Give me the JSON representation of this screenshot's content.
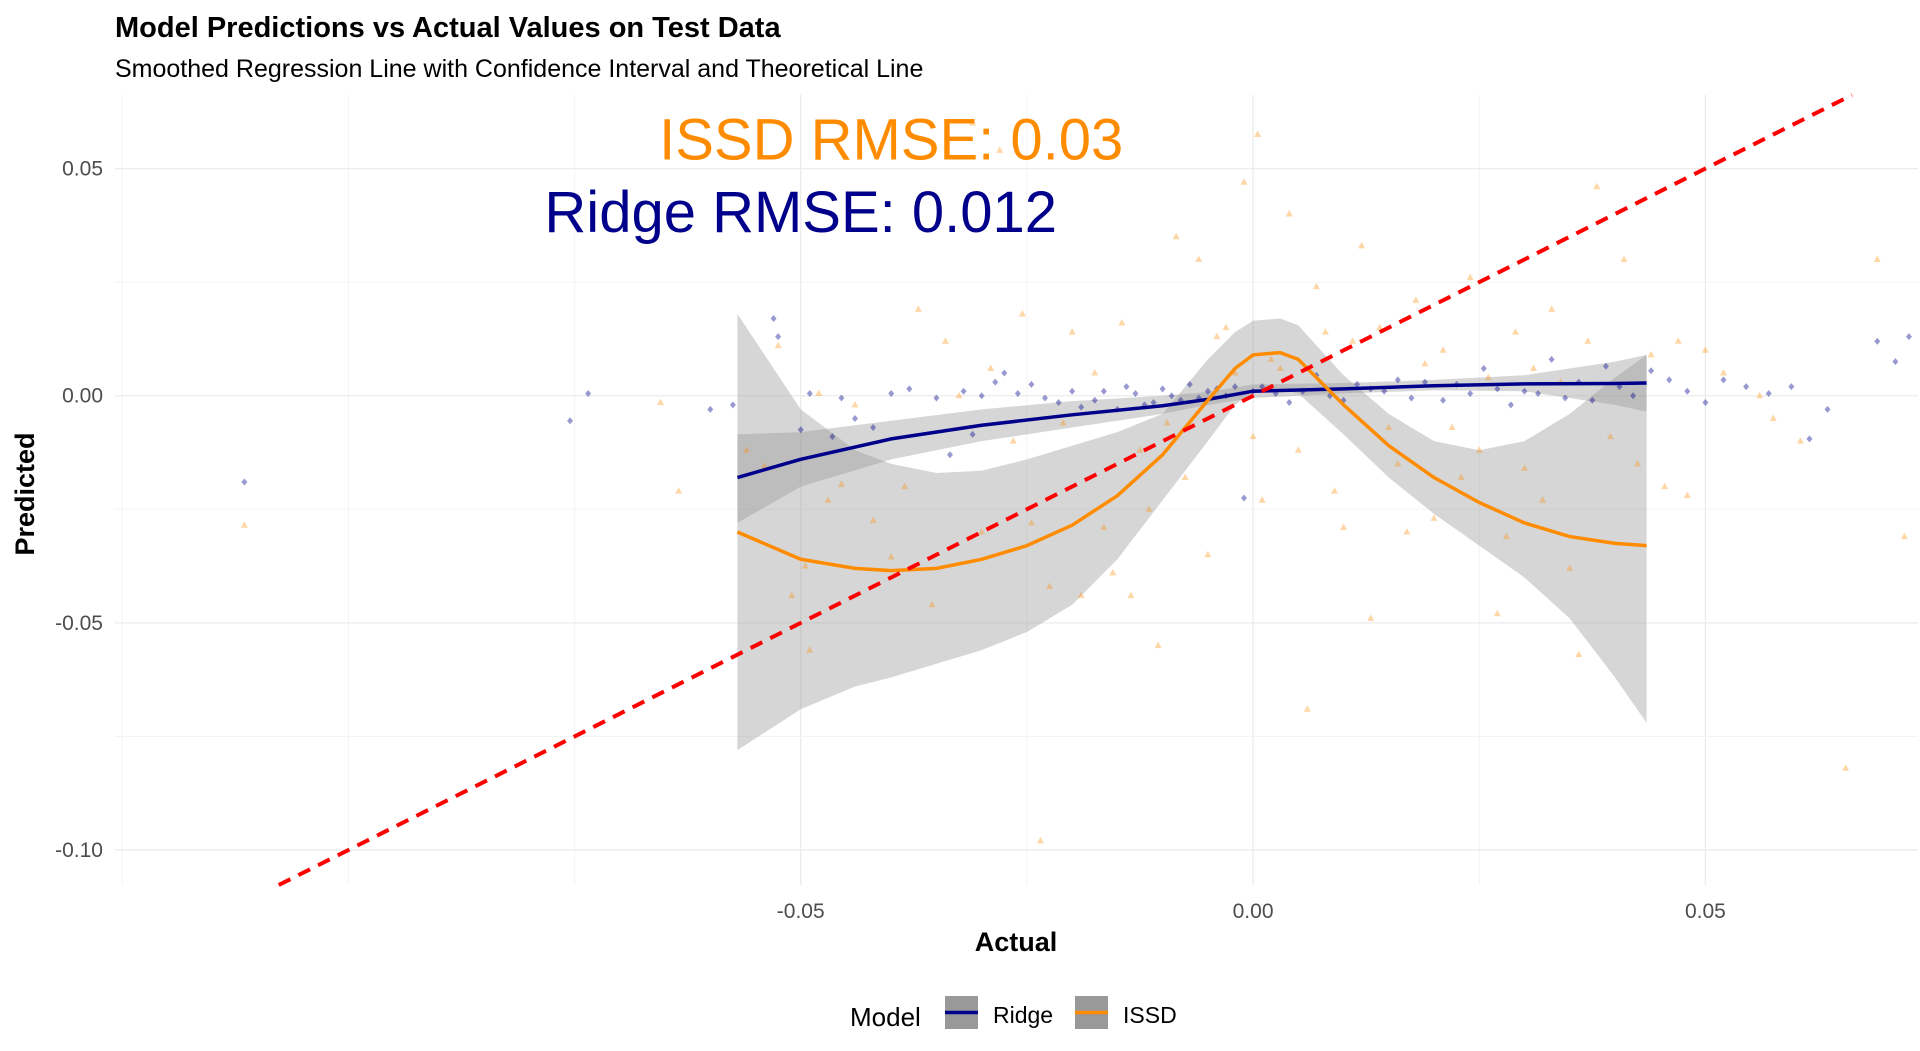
{
  "chart_data": {
    "type": "scatter",
    "title": "Model Predictions vs Actual Values on Test Data",
    "subtitle": "Smoothed Regression Line with Confidence Interval and Theoretical Line",
    "xlabel": "Actual",
    "ylabel": "Predicted",
    "xlim": [
      -0.1258,
      0.0735
    ],
    "ylim": [
      -0.1077,
      0.0662
    ],
    "xticks": [
      -0.05,
      0.0,
      0.05
    ],
    "xtick_labels": [
      "-0.05",
      "0.00",
      "0.05"
    ],
    "yticks": [
      -0.1,
      -0.05,
      0.0,
      0.05
    ],
    "ytick_labels": [
      "-0.10",
      "-0.05",
      "0.00",
      "0.05"
    ],
    "grid": true,
    "legend": {
      "title": "Model",
      "position": "bottom",
      "entries": [
        "Ridge",
        "ISSD"
      ]
    },
    "annotations": [
      {
        "text": "ISSD RMSE: 0.03",
        "x": -0.04,
        "y": 0.052,
        "color": "#ff8c00"
      },
      {
        "text": "Ridge RMSE: 0.012",
        "x": -0.05,
        "y": 0.036,
        "color": "#00008b"
      }
    ],
    "theoretical_line": {
      "slope": 1,
      "intercept": 0,
      "color": "#ff0000",
      "style": "dashed"
    },
    "series": [
      {
        "name": "Ridge",
        "color": "#00008b",
        "marker": "diamond",
        "smooth": {
          "x": [
            -0.057,
            -0.05,
            -0.04,
            -0.03,
            -0.02,
            -0.01,
            -0.005,
            0.0,
            0.01,
            0.02,
            0.03,
            0.04,
            0.0435
          ],
          "y": [
            -0.018,
            -0.014,
            -0.0095,
            -0.0065,
            -0.0042,
            -0.0022,
            -0.0008,
            0.001,
            0.0015,
            0.0022,
            0.0026,
            0.0027,
            0.0028
          ],
          "ci_lower": [
            -0.028,
            -0.02,
            -0.014,
            -0.01,
            -0.007,
            -0.004,
            -0.002,
            -0.0005,
            0.0005,
            0.0012,
            0.001,
            -0.002,
            -0.0035
          ],
          "ci_upper": [
            -0.0085,
            -0.008,
            -0.0055,
            -0.003,
            -0.0012,
            0.0,
            0.0008,
            0.0025,
            0.0028,
            0.0035,
            0.0045,
            0.0075,
            0.009
          ]
        },
        "points": [
          [
            -0.1115,
            -0.019
          ],
          [
            -0.0755,
            -0.0055
          ],
          [
            -0.0735,
            0.0005
          ],
          [
            -0.06,
            -0.003
          ],
          [
            -0.0575,
            -0.002
          ],
          [
            -0.053,
            0.017
          ],
          [
            -0.0525,
            0.013
          ],
          [
            -0.05,
            -0.0075
          ],
          [
            -0.049,
            0.0005
          ],
          [
            -0.0465,
            -0.009
          ],
          [
            -0.0455,
            -0.0005
          ],
          [
            -0.044,
            -0.005
          ],
          [
            -0.042,
            -0.007
          ],
          [
            -0.04,
            0.0005
          ],
          [
            -0.038,
            0.0015
          ],
          [
            -0.035,
            -0.0005
          ],
          [
            -0.0335,
            -0.013
          ],
          [
            -0.032,
            0.001
          ],
          [
            -0.031,
            -0.0085
          ],
          [
            -0.03,
            0.0
          ],
          [
            -0.0285,
            0.003
          ],
          [
            -0.0275,
            0.005
          ],
          [
            -0.026,
            0.0005
          ],
          [
            -0.0245,
            0.0025
          ],
          [
            -0.023,
            -0.0005
          ],
          [
            -0.0215,
            -0.0015
          ],
          [
            -0.02,
            0.001
          ],
          [
            -0.019,
            -0.0025
          ],
          [
            -0.0175,
            -0.001
          ],
          [
            -0.0165,
            0.001
          ],
          [
            -0.015,
            -0.003
          ],
          [
            -0.014,
            0.002
          ],
          [
            -0.013,
            0.0005
          ],
          [
            -0.012,
            -0.002
          ],
          [
            -0.011,
            -0.0015
          ],
          [
            -0.01,
            0.0015
          ],
          [
            -0.009,
            0.0
          ],
          [
            -0.008,
            -0.001
          ],
          [
            -0.007,
            0.0025
          ],
          [
            -0.006,
            -0.0005
          ],
          [
            -0.005,
            0.001
          ],
          [
            -0.004,
            0.0015
          ],
          [
            -0.003,
            0.0
          ],
          [
            -0.002,
            0.002
          ],
          [
            -0.001,
            -0.0225
          ],
          [
            0.0,
            0.001
          ],
          [
            0.001,
            0.002
          ],
          [
            0.0025,
            0.0005
          ],
          [
            0.004,
            -0.0015
          ],
          [
            0.0055,
            0.001
          ],
          [
            0.007,
            0.0045
          ],
          [
            0.0085,
            0.0
          ],
          [
            0.01,
            -0.001
          ],
          [
            0.0115,
            0.0025
          ],
          [
            0.013,
            0.0015
          ],
          [
            0.0145,
            0.001
          ],
          [
            0.016,
            0.0035
          ],
          [
            0.0175,
            -0.0005
          ],
          [
            0.019,
            0.003
          ],
          [
            0.021,
            -0.001
          ],
          [
            0.0225,
            0.0025
          ],
          [
            0.024,
            0.0005
          ],
          [
            0.0255,
            0.006
          ],
          [
            0.027,
            0.0015
          ],
          [
            0.0285,
            -0.002
          ],
          [
            0.03,
            0.001
          ],
          [
            0.0315,
            0.0005
          ],
          [
            0.033,
            0.008
          ],
          [
            0.0345,
            -0.0005
          ],
          [
            0.036,
            0.003
          ],
          [
            0.0375,
            -0.001
          ],
          [
            0.039,
            0.0065
          ],
          [
            0.0405,
            0.002
          ],
          [
            0.042,
            0.0
          ],
          [
            0.044,
            0.0055
          ],
          [
            0.046,
            0.0035
          ],
          [
            0.048,
            0.001
          ],
          [
            0.05,
            -0.0015
          ],
          [
            0.052,
            0.0035
          ],
          [
            0.0545,
            0.002
          ],
          [
            0.057,
            0.0005
          ],
          [
            0.0595,
            0.002
          ],
          [
            0.0615,
            -0.0095
          ],
          [
            0.0635,
            -0.003
          ],
          [
            0.069,
            0.012
          ],
          [
            0.071,
            0.0075
          ],
          [
            0.0725,
            0.013
          ]
        ]
      },
      {
        "name": "ISSD",
        "color": "#ff8c00",
        "marker": "triangle",
        "smooth": {
          "x": [
            -0.057,
            -0.05,
            -0.044,
            -0.04,
            -0.035,
            -0.03,
            -0.025,
            -0.02,
            -0.015,
            -0.01,
            -0.005,
            -0.002,
            0.0,
            0.003,
            0.005,
            0.01,
            0.015,
            0.02,
            0.025,
            0.03,
            0.035,
            0.04,
            0.0435
          ],
          "y": [
            -0.03,
            -0.036,
            -0.038,
            -0.0385,
            -0.038,
            -0.036,
            -0.033,
            -0.0285,
            -0.022,
            -0.013,
            -0.001,
            0.006,
            0.009,
            0.0095,
            0.008,
            -0.002,
            -0.011,
            -0.018,
            -0.0235,
            -0.028,
            -0.031,
            -0.0325,
            -0.033
          ],
          "ci_lower": [
            -0.078,
            -0.069,
            -0.064,
            -0.062,
            -0.059,
            -0.056,
            -0.052,
            -0.046,
            -0.036,
            -0.023,
            -0.01,
            -0.002,
            0.001,
            0.0015,
            0.0005,
            -0.0085,
            -0.018,
            -0.026,
            -0.033,
            -0.04,
            -0.049,
            -0.062,
            -0.072
          ],
          "ci_upper": [
            0.018,
            -0.003,
            -0.012,
            -0.015,
            -0.017,
            -0.0165,
            -0.014,
            -0.011,
            -0.008,
            -0.004,
            0.008,
            0.014,
            0.0165,
            0.017,
            0.0155,
            0.0045,
            -0.004,
            -0.01,
            -0.012,
            -0.01,
            -0.004,
            0.004,
            0.009
          ]
        },
        "points": [
          [
            -0.1115,
            -0.0285
          ],
          [
            -0.0655,
            -0.0015
          ],
          [
            -0.0635,
            -0.021
          ],
          [
            -0.056,
            -0.012
          ],
          [
            -0.054,
            -0.0155
          ],
          [
            -0.0525,
            0.011
          ],
          [
            -0.051,
            -0.044
          ],
          [
            -0.0495,
            -0.0375
          ],
          [
            -0.049,
            -0.056
          ],
          [
            -0.048,
            0.0005
          ],
          [
            -0.047,
            -0.023
          ],
          [
            -0.0455,
            -0.0195
          ],
          [
            -0.044,
            -0.002
          ],
          [
            -0.042,
            -0.0275
          ],
          [
            -0.04,
            -0.0355
          ],
          [
            -0.0385,
            -0.02
          ],
          [
            -0.037,
            0.019
          ],
          [
            -0.0355,
            -0.046
          ],
          [
            -0.034,
            0.012
          ],
          [
            -0.0325,
            0.0
          ],
          [
            -0.031,
            0.06
          ],
          [
            -0.03,
            -0.03
          ],
          [
            -0.029,
            0.006
          ],
          [
            -0.028,
            0.054
          ],
          [
            -0.0265,
            -0.01
          ],
          [
            -0.0255,
            0.018
          ],
          [
            -0.0245,
            -0.028
          ],
          [
            -0.0235,
            -0.098
          ],
          [
            -0.0225,
            -0.042
          ],
          [
            -0.021,
            -0.006
          ],
          [
            -0.02,
            0.014
          ],
          [
            -0.019,
            -0.044
          ],
          [
            -0.0175,
            0.005
          ],
          [
            -0.0165,
            -0.029
          ],
          [
            -0.0155,
            -0.039
          ],
          [
            -0.0145,
            0.016
          ],
          [
            -0.0135,
            -0.044
          ],
          [
            -0.0125,
            -0.012
          ],
          [
            -0.0115,
            -0.025
          ],
          [
            -0.0105,
            -0.055
          ],
          [
            -0.0095,
            -0.006
          ],
          [
            -0.0085,
            0.035
          ],
          [
            -0.0075,
            -0.018
          ],
          [
            -0.006,
            0.03
          ],
          [
            -0.005,
            -0.035
          ],
          [
            -0.004,
            0.013
          ],
          [
            -0.003,
            0.015
          ],
          [
            -0.002,
            0.005
          ],
          [
            -0.001,
            0.047
          ],
          [
            0.0,
            -0.009
          ],
          [
            0.0005,
            0.0575
          ],
          [
            0.001,
            -0.023
          ],
          [
            0.002,
            0.008
          ],
          [
            0.003,
            0.006
          ],
          [
            0.004,
            0.04
          ],
          [
            0.005,
            -0.012
          ],
          [
            0.006,
            -0.069
          ],
          [
            0.007,
            0.024
          ],
          [
            0.008,
            0.014
          ],
          [
            0.009,
            -0.021
          ],
          [
            0.01,
            -0.029
          ],
          [
            0.011,
            0.012
          ],
          [
            0.012,
            0.033
          ],
          [
            0.013,
            -0.049
          ],
          [
            0.014,
            0.015
          ],
          [
            0.015,
            -0.007
          ],
          [
            0.016,
            -0.015
          ],
          [
            0.017,
            -0.03
          ],
          [
            0.018,
            0.021
          ],
          [
            0.019,
            0.007
          ],
          [
            0.02,
            -0.027
          ],
          [
            0.021,
            0.01
          ],
          [
            0.022,
            -0.007
          ],
          [
            0.023,
            -0.018
          ],
          [
            0.024,
            0.026
          ],
          [
            0.025,
            -0.012
          ],
          [
            0.026,
            0.004
          ],
          [
            0.027,
            -0.048
          ],
          [
            0.028,
            -0.031
          ],
          [
            0.029,
            0.014
          ],
          [
            0.03,
            -0.016
          ],
          [
            0.031,
            0.006
          ],
          [
            0.032,
            -0.023
          ],
          [
            0.033,
            0.019
          ],
          [
            0.034,
            0.003
          ],
          [
            0.035,
            -0.038
          ],
          [
            0.036,
            -0.057
          ],
          [
            0.037,
            0.012
          ],
          [
            0.038,
            0.046
          ],
          [
            0.0395,
            -0.009
          ],
          [
            0.041,
            0.03
          ],
          [
            0.0425,
            -0.015
          ],
          [
            0.044,
            0.009
          ],
          [
            0.0455,
            -0.02
          ],
          [
            0.047,
            0.012
          ],
          [
            0.048,
            -0.022
          ],
          [
            0.05,
            0.01
          ],
          [
            0.052,
            0.005
          ],
          [
            0.056,
            0.0
          ],
          [
            0.0575,
            -0.005
          ],
          [
            0.0605,
            -0.01
          ],
          [
            0.0655,
            -0.082
          ],
          [
            0.069,
            0.03
          ],
          [
            0.072,
            -0.031
          ]
        ]
      }
    ]
  }
}
